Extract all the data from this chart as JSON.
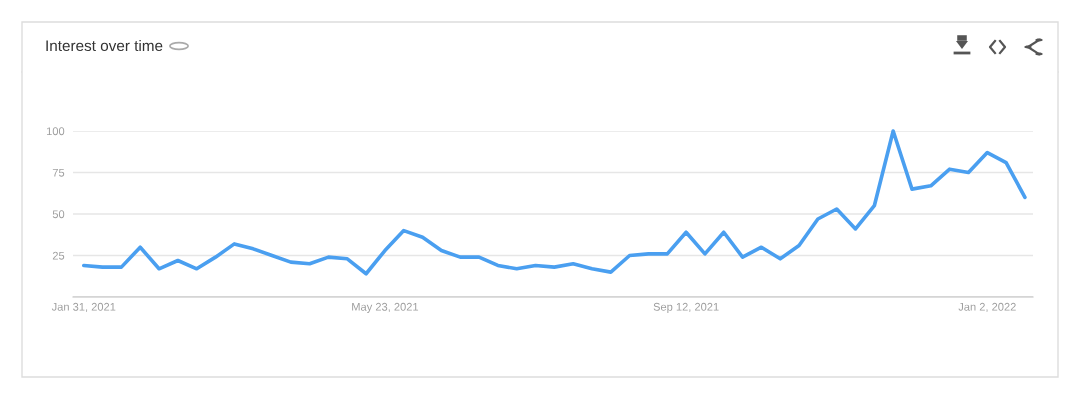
{
  "chart_data": {
    "type": "line",
    "title": "Interest over time",
    "x": [
      "2021-01-31",
      "2021-02-07",
      "2021-02-14",
      "2021-02-21",
      "2021-02-28",
      "2021-03-07",
      "2021-03-14",
      "2021-03-21",
      "2021-03-28",
      "2021-04-04",
      "2021-04-11",
      "2021-04-18",
      "2021-04-25",
      "2021-05-02",
      "2021-05-09",
      "2021-05-16",
      "2021-05-23",
      "2021-05-30",
      "2021-06-06",
      "2021-06-13",
      "2021-06-20",
      "2021-06-27",
      "2021-07-04",
      "2021-07-11",
      "2021-07-18",
      "2021-07-25",
      "2021-08-01",
      "2021-08-08",
      "2021-08-15",
      "2021-08-22",
      "2021-08-29",
      "2021-09-05",
      "2021-09-12",
      "2021-09-19",
      "2021-09-26",
      "2021-10-03",
      "2021-10-10",
      "2021-10-17",
      "2021-10-24",
      "2021-10-31",
      "2021-11-07",
      "2021-11-14",
      "2021-11-21",
      "2021-11-28",
      "2021-12-05",
      "2021-12-12",
      "2021-12-19",
      "2021-12-26",
      "2022-01-02",
      "2022-01-09",
      "2022-01-16"
    ],
    "series": [
      {
        "color": "#4a9ff0",
        "values": [
          19,
          18,
          18,
          30,
          17,
          22,
          17,
          24,
          32,
          29,
          25,
          21,
          20,
          24,
          23,
          14,
          28,
          40,
          36,
          28,
          24,
          24,
          19,
          17,
          19,
          18,
          20,
          17,
          15,
          25,
          26,
          26,
          39,
          26,
          39,
          24,
          30,
          23,
          31,
          47,
          53,
          41,
          55,
          100,
          65,
          67,
          77,
          75,
          87,
          81,
          60
        ]
      }
    ],
    "xlim": [
      "2021-01-27",
      "2022-01-19"
    ],
    "xticks": [
      {
        "value": "2021-01-31",
        "label": "Jan 31, 2021"
      },
      {
        "value": "2021-05-23",
        "label": "May 23, 2021"
      },
      {
        "value": "2021-09-12",
        "label": "Sep 12, 2021"
      },
      {
        "value": "2022-01-02",
        "label": "Jan 2, 2022"
      }
    ],
    "ylim": [
      0,
      100
    ],
    "yticks": [
      {
        "value": 0,
        "label": null
      },
      25,
      50,
      75,
      100
    ],
    "grid": "y",
    "marker": "none",
    "line_style": "solid"
  }
}
